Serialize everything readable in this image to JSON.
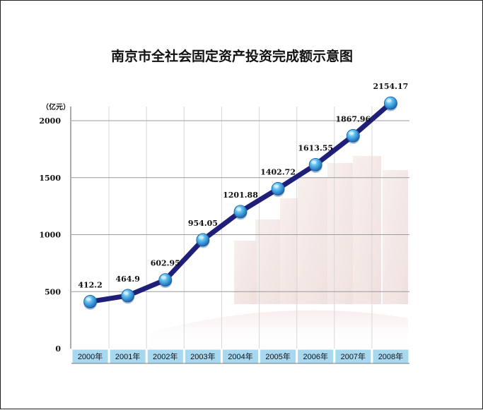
{
  "chart_data": {
    "type": "line",
    "title": "南京市全社会固定资产投资完成额示意图",
    "unit_label": "（亿元）",
    "categories": [
      "2000年",
      "2001年",
      "2002年",
      "2003年",
      "2004年",
      "2005年",
      "2006年",
      "2007年",
      "2008年"
    ],
    "values": [
      412.2,
      464.9,
      602.95,
      954.05,
      1201.88,
      1402.72,
      1613.55,
      1867.96,
      2154.17
    ],
    "value_labels": [
      "412.2",
      "464.9",
      "602.95",
      "954.05",
      "1201.88",
      "1402.72",
      "1613.55",
      "1867.96",
      "2154.17"
    ],
    "y_ticks": [
      0,
      500,
      1000,
      1500,
      2000
    ],
    "ylim": [
      0,
      2000
    ],
    "grid": true,
    "colors": {
      "line": "#1f1f7a",
      "marker": "#2a8fd8",
      "marker_highlight": "#cfefff",
      "xlabel_bg": "#a8d8f0",
      "grid": "#9a9a9a"
    }
  }
}
